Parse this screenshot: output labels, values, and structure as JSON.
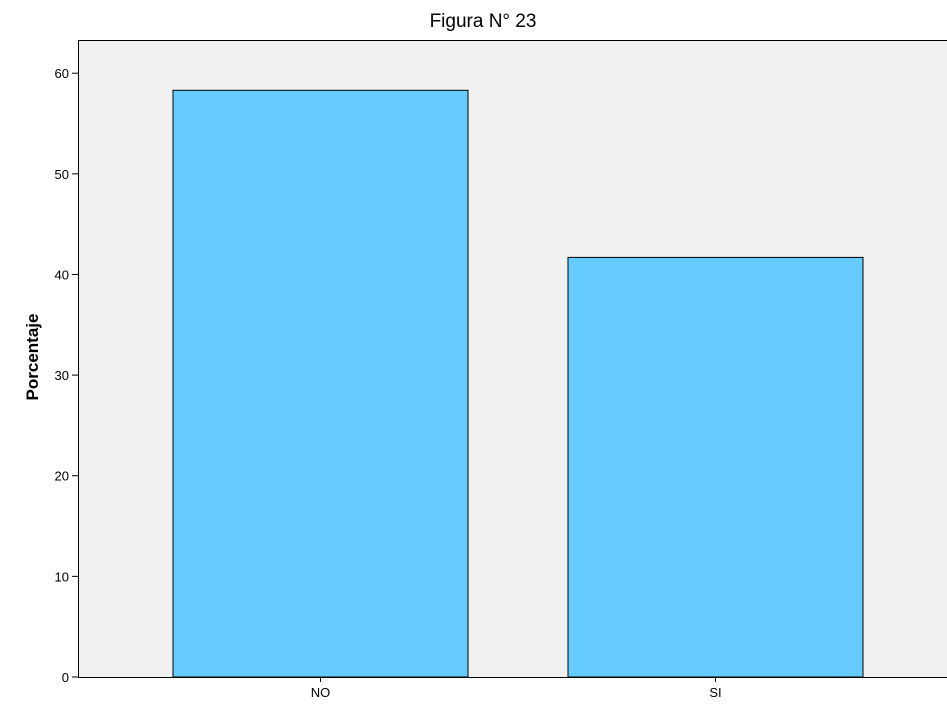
{
  "chart_data": {
    "type": "bar",
    "title": "Figura N° 23",
    "xlabel": "",
    "ylabel": "Porcentaje",
    "categories": [
      "NO",
      "SI"
    ],
    "values": [
      58.3,
      41.7
    ],
    "ylim": [
      0,
      63.3
    ],
    "yticks": [
      0,
      10,
      20,
      30,
      40,
      50,
      60
    ],
    "grid": false,
    "legend": "none",
    "colors": {
      "bar_fill": "#66ccff",
      "bar_stroke": "#000000",
      "plot_background": "#f0f0f0",
      "axis": "#000000"
    }
  }
}
